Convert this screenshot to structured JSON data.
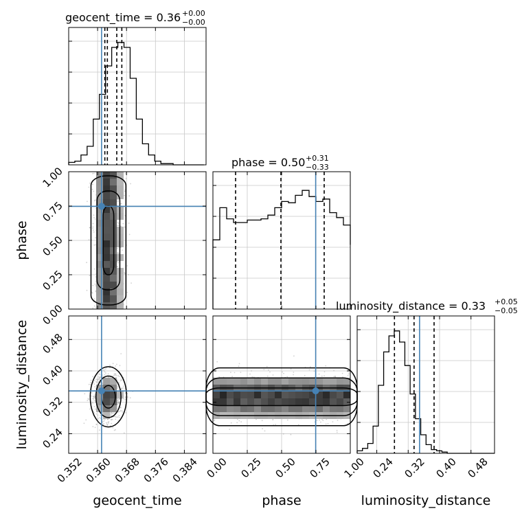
{
  "chart_data": {
    "type": "corner",
    "parameters": [
      "geocent_time",
      "phase",
      "luminosity_distance"
    ],
    "truths": [
      0.3611,
      0.748,
      0.349
    ],
    "truth_color": "#4682b4",
    "ranges": [
      [
        0.352,
        0.39
      ],
      [
        0.0,
        1.0
      ],
      [
        0.19,
        0.54
      ]
    ],
    "ticks": [
      [
        "0.352",
        "0.360",
        "0.368",
        "0.376",
        "0.384"
      ],
      [
        "0.00",
        "0.25",
        "0.50",
        "0.75",
        "1.00"
      ],
      [
        "0.24",
        "0.32",
        "0.40",
        "0.48"
      ]
    ],
    "summaries": [
      {
        "title": "geocent_time = 0.36",
        "median": 0.3625,
        "plus": "+0.00",
        "minus": "−0.00",
        "quantiles": [
          0.362,
          0.3627,
          0.3653,
          0.3667
        ]
      },
      {
        "title": "phase = 0.50",
        "median": 0.5,
        "plus": "+0.31",
        "minus": "−0.33",
        "quantiles": [
          0.165,
          0.495,
          0.81
        ]
      },
      {
        "title": "luminosity_distance = 0.33",
        "median": 0.33,
        "plus": "+0.05",
        "minus": "−0.05",
        "quantiles": [
          0.285,
          0.335,
          0.386
        ]
      }
    ],
    "histograms": [
      {
        "param": "geocent_time",
        "bin_start": 0.352,
        "bin_width": 0.0017,
        "counts": [
          0.02,
          0.03,
          0.08,
          0.15,
          0.37,
          0.57,
          0.8,
          0.95,
          0.99,
          0.95,
          0.7,
          0.37,
          0.17,
          0.08,
          0.03,
          0.01,
          0.01,
          0.0,
          0.0,
          0.0,
          0.0,
          0.0
        ]
      },
      {
        "param": "phase",
        "bin_start": 0.0,
        "bin_width": 0.05,
        "counts": [
          0.56,
          0.82,
          0.73,
          0.7,
          0.7,
          0.72,
          0.72,
          0.73,
          0.76,
          0.82,
          0.87,
          0.86,
          0.92,
          0.96,
          0.91,
          0.87,
          0.89,
          0.78,
          0.74,
          0.68,
          0.6,
          0.52
        ]
      },
      {
        "param": "luminosity_distance",
        "bin_start": 0.19,
        "bin_width": 0.0135,
        "counts": [
          0.02,
          0.04,
          0.08,
          0.22,
          0.55,
          0.82,
          0.95,
          0.99,
          0.9,
          0.71,
          0.48,
          0.28,
          0.15,
          0.07,
          0.03,
          0.02,
          0.01,
          0.0,
          0.0,
          0.0,
          0.0,
          0.0,
          0.0,
          0.0,
          0.0,
          0.0
        ]
      }
    ],
    "samples_2d": [
      {
        "x": "geocent_time",
        "y": "phase",
        "x_mean": 0.363,
        "x_sd": 0.0021,
        "y_dist": "uniform"
      },
      {
        "x": "geocent_time",
        "y": "luminosity_distance",
        "x_mean": 0.363,
        "x_sd": 0.0021,
        "y_mean": 0.334,
        "y_sd": 0.032
      },
      {
        "x": "phase",
        "y": "luminosity_distance",
        "x_dist": "uniform",
        "y_mean": 0.334,
        "y_sd": 0.032
      }
    ],
    "grid": true
  }
}
